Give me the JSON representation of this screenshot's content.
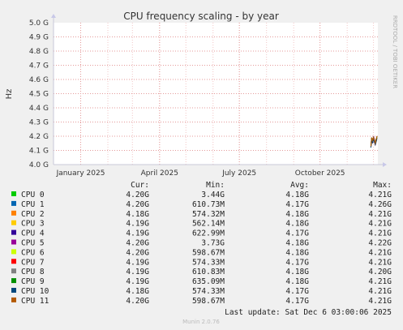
{
  "chart_data": {
    "type": "line",
    "title": "CPU frequency scaling - by year",
    "ylabel": "Hz",
    "watermark": "RRDTOOL / TOBI OETIKER",
    "ylim": [
      4.0,
      5.0
    ],
    "y_ticks": [
      {
        "value": 5.0,
        "label": "5.0 G"
      },
      {
        "value": 4.9,
        "label": "4.9 G"
      },
      {
        "value": 4.8,
        "label": "4.8 G"
      },
      {
        "value": 4.7,
        "label": "4.7 G"
      },
      {
        "value": 4.6,
        "label": "4.6 G"
      },
      {
        "value": 4.5,
        "label": "4.5 G"
      },
      {
        "value": 4.4,
        "label": "4.4 G"
      },
      {
        "value": 4.3,
        "label": "4.3 G"
      },
      {
        "value": 4.2,
        "label": "4.2 G"
      },
      {
        "value": 4.1,
        "label": "4.1 G"
      },
      {
        "value": 4.0,
        "label": "4.0 G"
      }
    ],
    "x_range": [
      "2024-12-01",
      "2025-12-06"
    ],
    "x_ticks": [
      {
        "date": "2025-01-01",
        "label": "January 2025"
      },
      {
        "date": "2025-04-01",
        "label": "April 2025"
      },
      {
        "date": "2025-07-01",
        "label": "July 2025"
      },
      {
        "date": "2025-10-01",
        "label": "October 2025"
      }
    ],
    "grid": true,
    "columns": [
      "Cur:",
      "Min:",
      "Avg:",
      "Max:"
    ],
    "series": [
      {
        "name": "CPU 0",
        "color": "#00cc00",
        "cur": "4.20G",
        "min": "3.44G",
        "avg": "4.18G",
        "max": "4.21G",
        "points": [
          [
            "2025-11-28",
            4.12
          ],
          [
            "2025-11-29",
            4.19
          ],
          [
            "2025-11-30",
            4.16
          ],
          [
            "2025-12-01",
            4.19
          ],
          [
            "2025-12-03",
            4.15
          ],
          [
            "2025-12-05",
            4.2
          ]
        ]
      },
      {
        "name": "CPU 1",
        "color": "#0066b3",
        "cur": "4.20G",
        "min": "610.73M",
        "avg": "4.17G",
        "max": "4.26G",
        "points": [
          [
            "2025-11-28",
            4.13
          ],
          [
            "2025-11-29",
            4.18
          ],
          [
            "2025-11-30",
            4.15
          ],
          [
            "2025-12-01",
            4.18
          ],
          [
            "2025-12-03",
            4.14
          ],
          [
            "2025-12-05",
            4.2
          ]
        ]
      },
      {
        "name": "CPU 2",
        "color": "#ff8000",
        "cur": "4.18G",
        "min": "574.32M",
        "avg": "4.18G",
        "max": "4.21G",
        "points": [
          [
            "2025-11-28",
            4.14
          ],
          [
            "2025-11-29",
            4.18
          ],
          [
            "2025-11-30",
            4.17
          ],
          [
            "2025-12-01",
            4.19
          ],
          [
            "2025-12-03",
            4.16
          ],
          [
            "2025-12-05",
            4.18
          ]
        ]
      },
      {
        "name": "CPU 3",
        "color": "#ffcc00",
        "cur": "4.19G",
        "min": "562.14M",
        "avg": "4.18G",
        "max": "4.21G",
        "points": [
          [
            "2025-11-28",
            4.13
          ],
          [
            "2025-11-29",
            4.19
          ],
          [
            "2025-11-30",
            4.16
          ],
          [
            "2025-12-01",
            4.18
          ],
          [
            "2025-12-03",
            4.15
          ],
          [
            "2025-12-05",
            4.19
          ]
        ]
      },
      {
        "name": "CPU 4",
        "color": "#330099",
        "cur": "4.19G",
        "min": "622.99M",
        "avg": "4.17G",
        "max": "4.21G",
        "points": [
          [
            "2025-11-28",
            4.12
          ],
          [
            "2025-11-29",
            4.18
          ],
          [
            "2025-11-30",
            4.15
          ],
          [
            "2025-12-01",
            4.19
          ],
          [
            "2025-12-03",
            4.14
          ],
          [
            "2025-12-05",
            4.19
          ]
        ]
      },
      {
        "name": "CPU 5",
        "color": "#990099",
        "cur": "4.20G",
        "min": "3.73G",
        "avg": "4.18G",
        "max": "4.22G",
        "points": [
          [
            "2025-11-28",
            4.14
          ],
          [
            "2025-11-29",
            4.19
          ],
          [
            "2025-11-30",
            4.16
          ],
          [
            "2025-12-01",
            4.2
          ],
          [
            "2025-12-03",
            4.16
          ],
          [
            "2025-12-05",
            4.2
          ]
        ]
      },
      {
        "name": "CPU 6",
        "color": "#ccff00",
        "cur": "4.20G",
        "min": "598.67M",
        "avg": "4.18G",
        "max": "4.21G",
        "points": [
          [
            "2025-11-28",
            4.13
          ],
          [
            "2025-11-29",
            4.18
          ],
          [
            "2025-11-30",
            4.17
          ],
          [
            "2025-12-01",
            4.19
          ],
          [
            "2025-12-03",
            4.15
          ],
          [
            "2025-12-05",
            4.2
          ]
        ]
      },
      {
        "name": "CPU 7",
        "color": "#ff0000",
        "cur": "4.19G",
        "min": "574.33M",
        "avg": "4.17G",
        "max": "4.21G",
        "points": [
          [
            "2025-11-28",
            4.12
          ],
          [
            "2025-11-29",
            4.18
          ],
          [
            "2025-11-30",
            4.15
          ],
          [
            "2025-12-01",
            4.18
          ],
          [
            "2025-12-03",
            4.14
          ],
          [
            "2025-12-05",
            4.19
          ]
        ]
      },
      {
        "name": "CPU 8",
        "color": "#808080",
        "cur": "4.19G",
        "min": "610.83M",
        "avg": "4.18G",
        "max": "4.20G",
        "points": [
          [
            "2025-11-28",
            4.14
          ],
          [
            "2025-11-29",
            4.19
          ],
          [
            "2025-11-30",
            4.16
          ],
          [
            "2025-12-01",
            4.19
          ],
          [
            "2025-12-03",
            4.16
          ],
          [
            "2025-12-05",
            4.19
          ]
        ]
      },
      {
        "name": "CPU 9",
        "color": "#008f00",
        "cur": "4.19G",
        "min": "635.09M",
        "avg": "4.18G",
        "max": "4.21G",
        "points": [
          [
            "2025-11-28",
            4.13
          ],
          [
            "2025-11-29",
            4.19
          ],
          [
            "2025-11-30",
            4.16
          ],
          [
            "2025-12-01",
            4.19
          ],
          [
            "2025-12-03",
            4.15
          ],
          [
            "2025-12-05",
            4.19
          ]
        ]
      },
      {
        "name": "CPU 10",
        "color": "#00487d",
        "cur": "4.18G",
        "min": "574.33M",
        "avg": "4.17G",
        "max": "4.21G",
        "points": [
          [
            "2025-11-28",
            4.12
          ],
          [
            "2025-11-29",
            4.18
          ],
          [
            "2025-11-30",
            4.15
          ],
          [
            "2025-12-01",
            4.18
          ],
          [
            "2025-12-03",
            4.14
          ],
          [
            "2025-12-05",
            4.18
          ]
        ]
      },
      {
        "name": "CPU 11",
        "color": "#b35a00",
        "cur": "4.20G",
        "min": "598.67M",
        "avg": "4.17G",
        "max": "4.21G",
        "points": [
          [
            "2025-11-28",
            4.13
          ],
          [
            "2025-11-29",
            4.19
          ],
          [
            "2025-11-30",
            4.17
          ],
          [
            "2025-12-01",
            4.19
          ],
          [
            "2025-12-03",
            4.15
          ],
          [
            "2025-12-05",
            4.2
          ]
        ]
      }
    ],
    "last_update": "Last update: Sat Dec  6 03:00:06 2025",
    "footer": "Munin 2.0.76"
  }
}
